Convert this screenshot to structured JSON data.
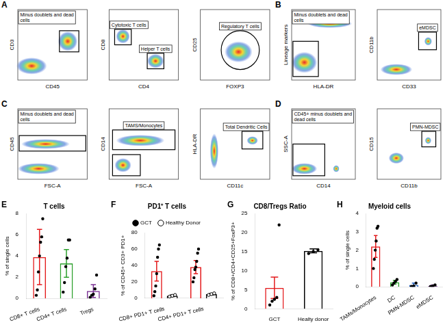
{
  "flow_panels": [
    {
      "letter": "A",
      "plots": [
        {
          "title": "Minus doublets and dead cells",
          "x_label": "CD45",
          "y_label": "CD3",
          "gates": []
        },
        {
          "x_label": "CD4",
          "y_label": "CD8",
          "gates": [
            "Cytotoxic T cells",
            "Helper T cells"
          ]
        },
        {
          "x_label": "FOXP3",
          "y_label": "CD25",
          "gates": [
            "Regulatory T cells"
          ]
        }
      ]
    },
    {
      "letter": "B",
      "plots": [
        {
          "title": "Minus doublets and dead cells",
          "x_label": "HLA-DR",
          "y_label": "Lineage markers",
          "gates": []
        },
        {
          "x_label": "CD33",
          "y_label": "CD11b",
          "gates": [
            "eMDSC"
          ]
        }
      ]
    },
    {
      "letter": "C",
      "plots": [
        {
          "title": "Minus doublets and dead cells",
          "x_label": "FSC-A",
          "y_label": "CD45",
          "gates": []
        },
        {
          "x_label": "FSC-A",
          "y_label": "CD14",
          "gates": [
            "TAMS/Monocytes"
          ]
        },
        {
          "x_label": "CD11c",
          "y_label": "HLA-DR",
          "gates": [
            "Total Dendritic Cells"
          ]
        }
      ]
    },
    {
      "letter": "D",
      "plots": [
        {
          "title": "CD45+ minus doublets and dead cells",
          "x_label": "CD14",
          "y_label": "SSC-A",
          "gates": []
        },
        {
          "x_label": "CD11b",
          "y_label": "CD15",
          "gates": [
            "PMN-MDSC"
          ]
        }
      ]
    }
  ],
  "chart_data": [
    {
      "type": "bar",
      "annotations": [
        "E"
      ],
      "title": "T cells",
      "y_label": "% of single cells",
      "categories": [
        "CD8+ T cells",
        "CD4+ T cells",
        "Tregs"
      ],
      "values": [
        3.9,
        3.3,
        0.7
      ],
      "errors": [
        2.6,
        1.3,
        0.6
      ],
      "points": [
        [
          0.3,
          0.8,
          2.5,
          4,
          5.3,
          5.8,
          7.5
        ],
        [
          0.6,
          1.5,
          3,
          3.8,
          5.5,
          5.5
        ],
        [
          0.1,
          0.3,
          0.4,
          0.9,
          2.2
        ]
      ],
      "colors": [
        "#e41a1c",
        "#2ca02c",
        "#7b3294"
      ],
      "marker": "circle",
      "ylim": [
        0,
        8
      ],
      "yticks": [
        0,
        2,
        4,
        6,
        8
      ],
      "grid": false
    },
    {
      "type": "bar",
      "annotations": [
        "F"
      ],
      "title": "PD1⁺ T cells",
      "y_label": "% of CD45+ CD3+ PD1+",
      "categories": [
        "CD8+ PD1+ T cells",
        "CD4+ PD1+ T cells"
      ],
      "series": [
        {
          "name": "GCT",
          "color": "#e41a1c",
          "marker": "circle",
          "values": [
            33,
            38
          ],
          "errors": [
            12,
            8
          ],
          "points": [
            [
              3,
              8,
              15,
              30,
              50,
              60,
              65
            ],
            [
              20,
              25,
              35,
              38,
              45,
              55,
              60
            ]
          ]
        },
        {
          "name": "Healthy Donor",
          "color": "#000000",
          "marker": "open_circle",
          "values": [
            3,
            5
          ],
          "errors": [
            1,
            1
          ],
          "points": [
            [
              2,
              3,
              4
            ],
            [
              4,
              5,
              6
            ]
          ]
        }
      ],
      "legend": "top",
      "ylim": [
        0,
        80
      ],
      "yticks": [
        0,
        20,
        40,
        60,
        80
      ],
      "grid": false
    },
    {
      "type": "bar",
      "annotations": [
        "G"
      ],
      "title": "CD8/Tregs Ratio",
      "y_label": "% of CD8+/CD4+CD25+FoxP3+",
      "categories": [
        "GCT",
        "Healty donor"
      ],
      "values": [
        5.5,
        15.2
      ],
      "errors": [
        2.8,
        0.5
      ],
      "points": [
        [
          1,
          2,
          2.5,
          3,
          22
        ],
        [
          14.5,
          15,
          15.5
        ]
      ],
      "colors": [
        "#e41a1c",
        "#000000"
      ],
      "marker": "circle",
      "ylim": [
        0,
        25
      ],
      "yticks": [
        0,
        5,
        10,
        15,
        20,
        25
      ],
      "grid": false
    },
    {
      "type": "bar",
      "annotations": [
        "H"
      ],
      "title": "Myeloid cells",
      "y_label": "% of single cells",
      "categories": [
        "TAMs/Monocytes",
        "DC",
        "PMN-MDSC",
        "eMDSC"
      ],
      "values": [
        2.2,
        0.25,
        0.1,
        0.05
      ],
      "errors": [
        0.6,
        0.1,
        0.1,
        0.05
      ],
      "points": [
        [
          1,
          1.5,
          2,
          2.5,
          3.2,
          3.3
        ],
        [
          0.1,
          0.2,
          0.3,
          0.4
        ],
        [
          0.02,
          0.05,
          0.2
        ],
        [
          0.02,
          0.05,
          0.1
        ]
      ],
      "colors": [
        "#e41a1c",
        "#2ca02c",
        "#1f5fbf",
        "#7b3294"
      ],
      "marker": "circle",
      "ylim": [
        0,
        4
      ],
      "yticks": [
        0,
        1,
        2,
        3,
        4
      ],
      "grid": false
    }
  ]
}
